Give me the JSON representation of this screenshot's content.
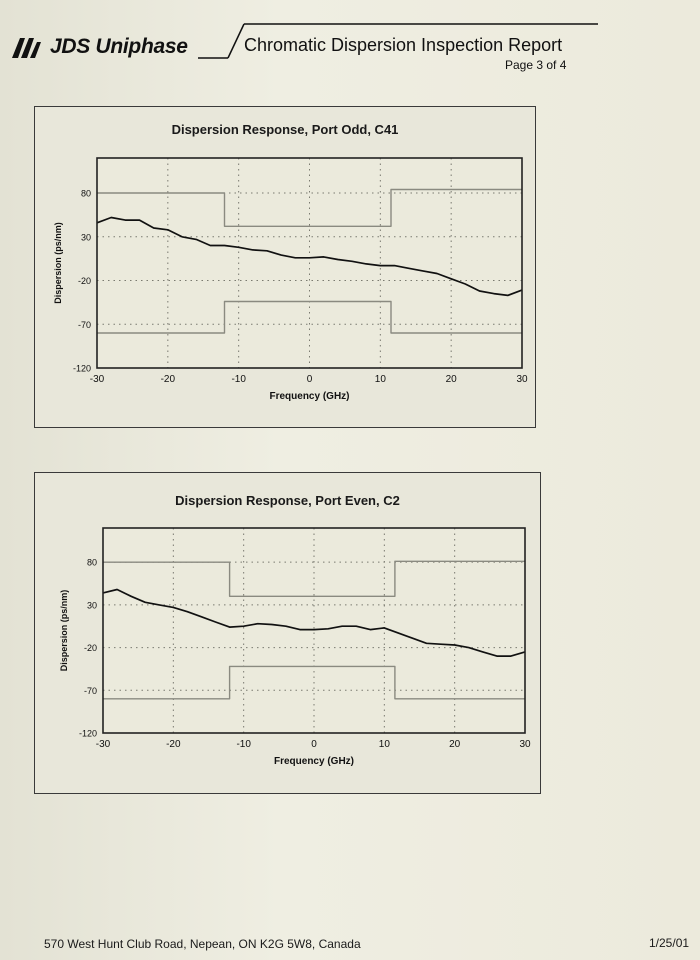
{
  "header": {
    "company": "JDS Uniphase",
    "report_title": "Chromatic Dispersion Inspection Report",
    "page": "Page 3 of 4"
  },
  "footer": {
    "address": "570 West Hunt Club Road, Nepean, ON K2G 5W8, Canada",
    "date": "1/25/01"
  },
  "colors": {
    "curve": "#111111",
    "mask": "#8a8a80",
    "grid": "#7a7a70",
    "frame": "#222222"
  },
  "chart_data": [
    {
      "type": "line",
      "title": "Dispersion Response, Port Odd, C41",
      "xlabel": "Frequency (GHz)",
      "ylabel": "Dispersion (ps/nm)",
      "xlim": [
        -30,
        30
      ],
      "ylim": [
        -120,
        120
      ],
      "xticks": [
        -30,
        -20,
        -10,
        0,
        10,
        20,
        30
      ],
      "yticks": [
        80,
        30,
        -20,
        -70,
        -120
      ],
      "grid": true,
      "series": [
        {
          "x": [
            -30,
            -28,
            -26,
            -24,
            -22,
            -20,
            -18,
            -16,
            -14,
            -12,
            -10,
            -8,
            -6,
            -4,
            -2,
            0,
            2,
            4,
            6,
            8,
            10,
            12,
            14,
            16,
            18,
            20,
            22,
            24,
            26,
            28,
            30
          ],
          "y": [
            46,
            52,
            49,
            49,
            40,
            38,
            30,
            27,
            20,
            20,
            18,
            15,
            14,
            9,
            6,
            6,
            7,
            4,
            2,
            -1,
            -3,
            -3,
            -6,
            -9,
            -12,
            -18,
            -24,
            -32,
            -35,
            -37,
            -31
          ]
        },
        {
          "style": "upper-mask",
          "x": [
            -30,
            -12,
            -12,
            11.5,
            11.5,
            30
          ],
          "y": [
            80,
            80,
            42,
            42,
            84,
            84
          ]
        },
        {
          "style": "lower-mask",
          "x": [
            -30,
            -12,
            -12,
            11.5,
            11.5,
            30
          ],
          "y": [
            -80,
            -80,
            -44,
            -44,
            -80,
            -80
          ]
        }
      ]
    },
    {
      "type": "line",
      "title": "Dispersion Response, Port Even, C2",
      "xlabel": "Frequency (GHz)",
      "ylabel": "Dispersion (ps/nm)",
      "xlim": [
        -30,
        30
      ],
      "ylim": [
        -120,
        120
      ],
      "xticks": [
        -30,
        -20,
        -10,
        0,
        10,
        20,
        30
      ],
      "yticks": [
        80,
        30,
        -20,
        -70,
        -120
      ],
      "grid": true,
      "series": [
        {
          "x": [
            -30,
            -28,
            -26,
            -24,
            -22,
            -20,
            -18,
            -16,
            -14,
            -12,
            -10,
            -8,
            -6,
            -4,
            -2,
            0,
            2,
            4,
            6,
            8,
            10,
            12,
            14,
            16,
            18,
            20,
            22,
            24,
            26,
            28,
            30
          ],
          "y": [
            44,
            48,
            40,
            33,
            30,
            27,
            22,
            16,
            10,
            4,
            5,
            8,
            7,
            5,
            1,
            1,
            2,
            5,
            5,
            1,
            3,
            -3,
            -9,
            -15,
            -16,
            -17,
            -20,
            -25,
            -30,
            -30,
            -25
          ]
        },
        {
          "style": "upper-mask",
          "x": [
            -30,
            -12,
            -12,
            11.5,
            11.5,
            30
          ],
          "y": [
            80,
            80,
            40,
            40,
            81,
            81
          ]
        },
        {
          "style": "lower-mask",
          "x": [
            -30,
            -12,
            -12,
            11.5,
            11.5,
            30
          ],
          "y": [
            -80,
            -80,
            -42,
            -42,
            -80,
            -80
          ]
        }
      ]
    }
  ]
}
